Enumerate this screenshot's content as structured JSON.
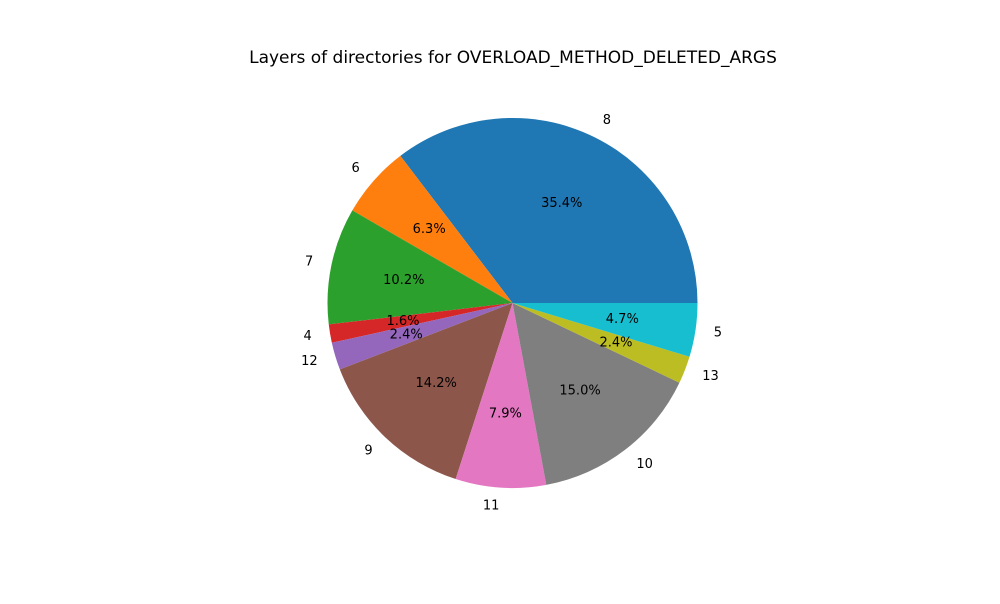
{
  "chart_data": {
    "type": "pie",
    "title": "Layers of directories for OVERLOAD_METHOD_DELETED_ARGS",
    "slices": [
      {
        "label": "8",
        "pct_label": "35.4%",
        "value": 35.4,
        "color": "#1f77b4"
      },
      {
        "label": "6",
        "pct_label": "6.3%",
        "value": 6.3,
        "color": "#ff7f0e"
      },
      {
        "label": "7",
        "pct_label": "10.2%",
        "value": 10.2,
        "color": "#2ca02c"
      },
      {
        "label": "4",
        "pct_label": "1.6%",
        "value": 1.6,
        "color": "#d62728"
      },
      {
        "label": "12",
        "pct_label": "2.4%",
        "value": 2.4,
        "color": "#9467bd"
      },
      {
        "label": "9",
        "pct_label": "14.2%",
        "value": 14.2,
        "color": "#8c564b"
      },
      {
        "label": "11",
        "pct_label": "7.9%",
        "value": 7.9,
        "color": "#e377c2"
      },
      {
        "label": "10",
        "pct_label": "15.0%",
        "value": 15.0,
        "color": "#7f7f7f"
      },
      {
        "label": "13",
        "pct_label": "2.4%",
        "value": 2.4,
        "color": "#bcbd22"
      },
      {
        "label": "5",
        "pct_label": "4.7%",
        "value": 4.7,
        "color": "#17becf"
      }
    ]
  }
}
